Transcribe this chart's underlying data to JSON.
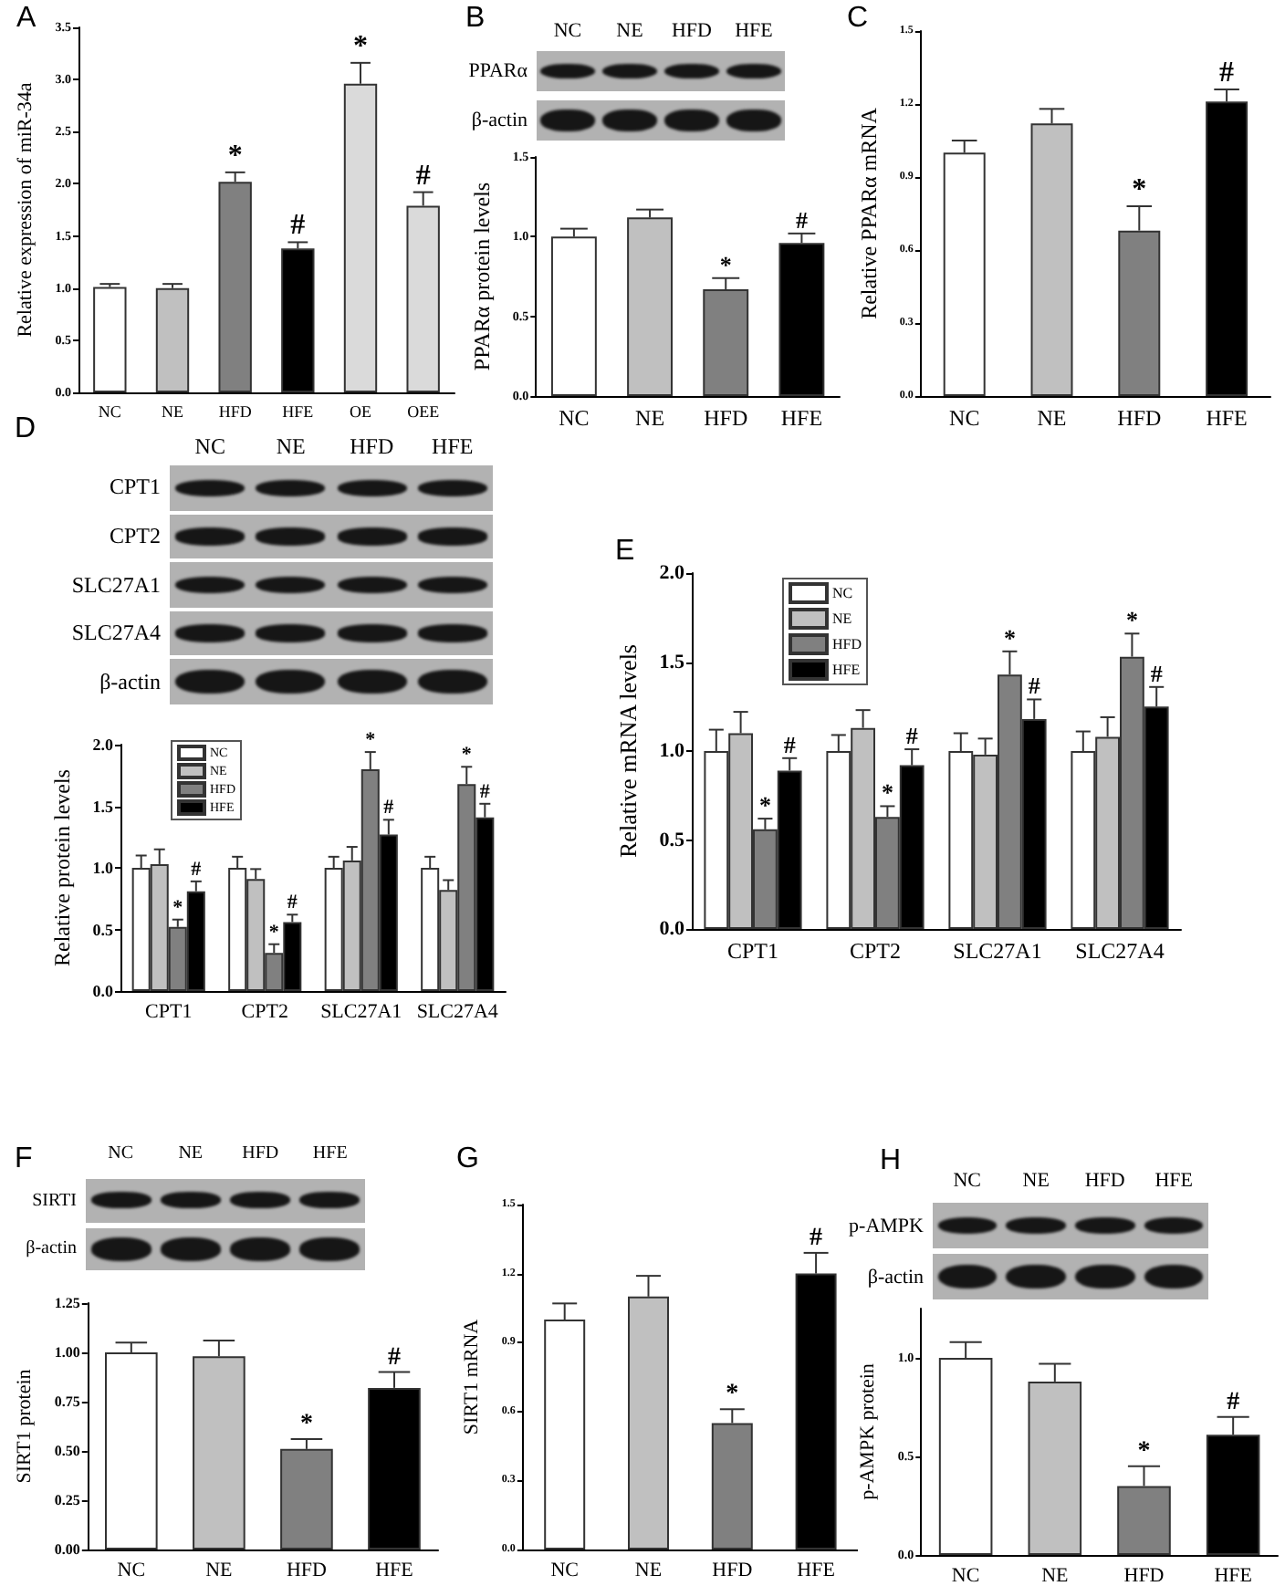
{
  "chart_data": [
    {
      "type": "bar",
      "title": "A",
      "ylabel": "Relative expression of miR-34a",
      "categories": [
        "NC",
        "NE",
        "HFD",
        "HFE",
        "OE",
        "OEE"
      ],
      "values": [
        1.01,
        1.0,
        2.02,
        1.38,
        2.96,
        1.79
      ],
      "colors": [
        "#ffffff",
        "#c0c0c0",
        "#808080",
        "#000000",
        "#dadada",
        "#dadada"
      ],
      "errors": [
        [
          1.01,
          1.04
        ],
        [
          1.0,
          1.04
        ],
        [
          2.02,
          2.11
        ],
        [
          1.38,
          1.44
        ],
        [
          2.96,
          3.16
        ],
        [
          1.79,
          1.92
        ]
      ],
      "value_labels": [
        null,
        null,
        "*",
        "#",
        "*",
        "#"
      ],
      "ylim": [
        0,
        3.5
      ],
      "yticks": [
        {
          "value": 0,
          "label": "0.0"
        },
        0.5,
        {
          "value": 1,
          "label": "1.0"
        },
        1.5,
        {
          "value": 2,
          "label": "2.0"
        },
        2.5,
        {
          "value": 3,
          "label": "3.0"
        },
        3.5
      ]
    },
    {
      "type": "bar",
      "title": "B",
      "ylabel": "PPARα protein levels",
      "annotations": [
        "NC",
        "NE",
        "HFD",
        "HFE",
        "PPARα",
        "β-actin"
      ],
      "categories": [
        "NC",
        "NE",
        "HFD",
        "HFE"
      ],
      "values": [
        1.0,
        1.12,
        0.67,
        0.96
      ],
      "colors": [
        "#ffffff",
        "#c0c0c0",
        "#808080",
        "#000000"
      ],
      "errors": [
        [
          1.0,
          1.05
        ],
        [
          1.12,
          1.17
        ],
        [
          0.67,
          0.74
        ],
        [
          0.96,
          1.02
        ]
      ],
      "value_labels": [
        null,
        null,
        "*",
        "#"
      ],
      "ylim": [
        0,
        1.5
      ],
      "yticks": [
        {
          "value": 0,
          "label": "0.0"
        },
        0.5,
        {
          "value": 1,
          "label": "1.0"
        },
        1.5
      ]
    },
    {
      "type": "bar",
      "title": "C",
      "ylabel": "Relative PPARα mRNA",
      "categories": [
        "NC",
        "NE",
        "HFD",
        "HFE"
      ],
      "values": [
        1.0,
        1.12,
        0.68,
        1.21
      ],
      "colors": [
        "#ffffff",
        "#c0c0c0",
        "#808080",
        "#000000"
      ],
      "errors": [
        [
          1.0,
          1.05
        ],
        [
          1.12,
          1.18
        ],
        [
          0.68,
          0.78
        ],
        [
          1.21,
          1.26
        ]
      ],
      "value_labels": [
        null,
        null,
        "*",
        "#"
      ],
      "ylim": [
        0,
        1.5
      ],
      "yticks": [
        {
          "value": 0,
          "label": "0.0"
        },
        0.3,
        0.6,
        0.9,
        1.2,
        1.5
      ]
    },
    {
      "type": "bar",
      "title": "D",
      "ylabel": "Relative protein levels",
      "annotations": [
        "NC",
        "NE",
        "HFD",
        "HFE",
        "CPT1",
        "CPT2",
        "SLC27A1",
        "SLC27A4",
        "β-actin"
      ],
      "categories": [
        "CPT1",
        "CPT2",
        "SLC27A1",
        "SLC27A4"
      ],
      "legend": "top left",
      "series": [
        {
          "name": "NC",
          "color": "#ffffff",
          "values": [
            1.0,
            1.0,
            1.0,
            1.0
          ],
          "errors": [
            [
              1.0,
              1.1
            ],
            [
              1.0,
              1.09
            ],
            [
              1.0,
              1.09
            ],
            [
              1.0,
              1.09
            ]
          ]
        },
        {
          "name": "NE",
          "color": "#c0c0c0",
          "values": [
            1.03,
            0.91,
            1.06,
            0.82
          ],
          "errors": [
            [
              1.03,
              1.15
            ],
            [
              0.91,
              0.99
            ],
            [
              1.06,
              1.17
            ],
            [
              0.82,
              0.9
            ]
          ]
        },
        {
          "name": "HFD",
          "color": "#808080",
          "values": [
            0.52,
            0.31,
            1.8,
            1.68
          ],
          "errors": [
            [
              0.52,
              0.58
            ],
            [
              0.31,
              0.38
            ],
            [
              1.8,
              1.94
            ],
            [
              1.68,
              1.82
            ]
          ],
          "value_labels": [
            "*",
            "*",
            "*",
            "*"
          ]
        },
        {
          "name": "HFE",
          "color": "#000000",
          "values": [
            0.81,
            0.56,
            1.27,
            1.41
          ],
          "errors": [
            [
              0.81,
              0.89
            ],
            [
              0.56,
              0.62
            ],
            [
              1.27,
              1.39
            ],
            [
              1.41,
              1.52
            ]
          ],
          "value_labels": [
            "#",
            "#",
            "#",
            "#"
          ]
        }
      ],
      "ylim": [
        0,
        2
      ],
      "yticks": [
        {
          "value": 0,
          "label": "0.0"
        },
        0.5,
        {
          "value": 1,
          "label": "1.0"
        },
        1.5,
        {
          "value": 2,
          "label": "2.0"
        }
      ]
    },
    {
      "type": "bar",
      "title": "E",
      "ylabel": "Relative mRNA levels",
      "categories": [
        "CPT1",
        "CPT2",
        "SLC27A1",
        "SLC27A4"
      ],
      "legend": "top left",
      "series": [
        {
          "name": "NC",
          "color": "#ffffff",
          "values": [
            1.0,
            1.0,
            1.0,
            1.0
          ],
          "errors": [
            [
              1.0,
              1.12
            ],
            [
              1.0,
              1.09
            ],
            [
              1.0,
              1.1
            ],
            [
              1.0,
              1.11
            ]
          ]
        },
        {
          "name": "NE",
          "color": "#c0c0c0",
          "values": [
            1.1,
            1.13,
            0.98,
            1.08
          ],
          "errors": [
            [
              1.1,
              1.22
            ],
            [
              1.13,
              1.23
            ],
            [
              0.98,
              1.07
            ],
            [
              1.08,
              1.19
            ]
          ]
        },
        {
          "name": "HFD",
          "color": "#808080",
          "values": [
            0.56,
            0.63,
            1.43,
            1.53
          ],
          "errors": [
            [
              0.56,
              0.62
            ],
            [
              0.63,
              0.69
            ],
            [
              1.43,
              1.56
            ],
            [
              1.53,
              1.66
            ]
          ],
          "value_labels": [
            "*",
            "*",
            "*",
            "*"
          ]
        },
        {
          "name": "HFE",
          "color": "#000000",
          "values": [
            0.89,
            0.92,
            1.18,
            1.25
          ],
          "errors": [
            [
              0.89,
              0.96
            ],
            [
              0.92,
              1.01
            ],
            [
              1.18,
              1.29
            ],
            [
              1.25,
              1.36
            ]
          ],
          "value_labels": [
            "#",
            "#",
            "#",
            "#"
          ]
        }
      ],
      "ylim": [
        0,
        2
      ],
      "yticks": [
        {
          "value": 0,
          "label": "0.0"
        },
        0.5,
        {
          "value": 1,
          "label": "1.0"
        },
        1.5,
        {
          "value": 2,
          "label": "2.0"
        }
      ]
    },
    {
      "type": "bar",
      "title": "F",
      "ylabel": "SIRT1 protein",
      "annotations": [
        "NC",
        "NE",
        "HFD",
        "HFE",
        "SIRTI",
        "β-actin"
      ],
      "categories": [
        "NC",
        "NE",
        "HFD",
        "HFE"
      ],
      "values": [
        1.0,
        0.98,
        0.51,
        0.82
      ],
      "colors": [
        "#ffffff",
        "#c0c0c0",
        "#808080",
        "#000000"
      ],
      "errors": [
        [
          1.0,
          1.05
        ],
        [
          0.98,
          1.06
        ],
        [
          0.51,
          0.56
        ],
        [
          0.82,
          0.9
        ]
      ],
      "value_labels": [
        null,
        null,
        "*",
        "#"
      ],
      "ylim": [
        0,
        1.25
      ],
      "yticks": [
        {
          "value": 0,
          "label": "0.00"
        },
        0.25,
        {
          "value": 0.5,
          "label": "0.50"
        },
        0.75,
        {
          "value": 1,
          "label": "1.00"
        },
        1.25
      ]
    },
    {
      "type": "bar",
      "title": "G",
      "ylabel": "SIRT1 mRNA",
      "categories": [
        "NC",
        "NE",
        "HFD",
        "HFE"
      ],
      "values": [
        1.0,
        1.1,
        0.55,
        1.2
      ],
      "colors": [
        "#ffffff",
        "#c0c0c0",
        "#808080",
        "#000000"
      ],
      "errors": [
        [
          1.0,
          1.07
        ],
        [
          1.1,
          1.19
        ],
        [
          0.55,
          0.61
        ],
        [
          1.2,
          1.29
        ]
      ],
      "value_labels": [
        null,
        null,
        "*",
        "#"
      ],
      "ylim": [
        0,
        1.5
      ],
      "yticks": [
        {
          "value": 0,
          "label": "0.0"
        },
        0.3,
        0.6,
        0.9,
        1.2,
        1.5
      ]
    },
    {
      "type": "bar",
      "title": "H",
      "ylabel": "p-AMPK protein",
      "annotations": [
        "NC",
        "NE",
        "HFD",
        "HFE",
        "p-AMPK",
        "β-actin"
      ],
      "categories": [
        "NC",
        "NE",
        "HFD",
        "HFE"
      ],
      "values": [
        1.0,
        0.88,
        0.35,
        0.61
      ],
      "colors": [
        "#ffffff",
        "#c0c0c0",
        "#808080",
        "#000000"
      ],
      "errors": [
        [
          1.0,
          1.08
        ],
        [
          0.88,
          0.97
        ],
        [
          0.35,
          0.45
        ],
        [
          0.61,
          0.7
        ]
      ],
      "value_labels": [
        null,
        null,
        "*",
        "#"
      ],
      "ylim": [
        0,
        1.25
      ],
      "yticks": [
        {
          "value": 0,
          "label": "0.0"
        },
        0.5,
        {
          "value": 1,
          "label": "1.0"
        }
      ]
    }
  ]
}
